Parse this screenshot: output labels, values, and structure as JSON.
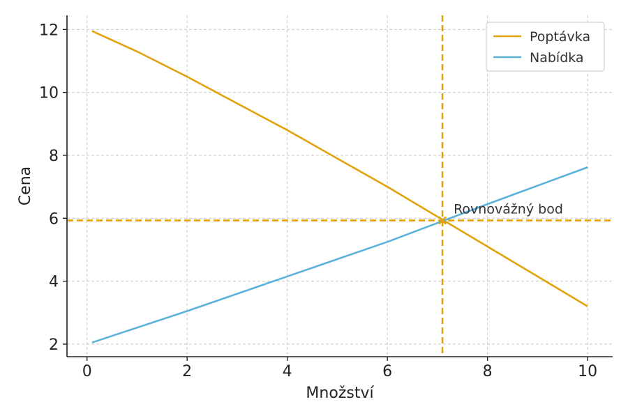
{
  "chart_data": {
    "type": "line",
    "title": "",
    "xlabel": "Množství",
    "ylabel": "Cena",
    "xlim": [
      -0.4,
      10.5
    ],
    "ylim": [
      1.6,
      12.45
    ],
    "xticks": [
      0,
      2,
      4,
      6,
      8,
      10
    ],
    "yticks": [
      2,
      4,
      6,
      8,
      10,
      12
    ],
    "grid": true,
    "legend_position": "top-right",
    "series": [
      {
        "name": "Poptávka",
        "color": "#E1A20E",
        "x": [
          0.1,
          1,
          2,
          3,
          4,
          5,
          6,
          7,
          8,
          9,
          10
        ],
        "y": [
          11.95,
          11.3,
          10.5,
          9.65,
          8.8,
          7.9,
          7.0,
          6.05,
          5.1,
          4.15,
          3.2
        ]
      },
      {
        "name": "Nabídka",
        "color": "#5BB1DA",
        "x": [
          0.1,
          2,
          4,
          6,
          8,
          10
        ],
        "y": [
          2.05,
          3.05,
          4.15,
          5.25,
          6.45,
          7.62
        ]
      }
    ],
    "equilibrium": {
      "x": 7.1,
      "y": 5.93,
      "label": "Rovnovážný bod",
      "color": "#E1A20E"
    }
  }
}
